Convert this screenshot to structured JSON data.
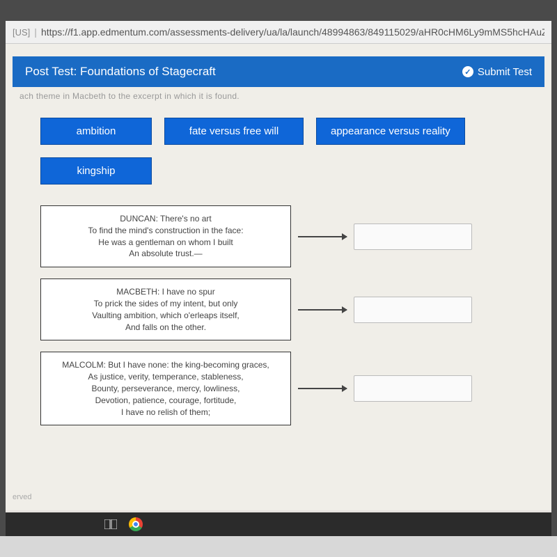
{
  "url_bar": {
    "region": "[US]",
    "url": "https://f1.app.edmentum.com/assessments-delivery/ua/la/launch/48994863/849115029/aHR0cHM6Ly9mMS5hcHAuZ"
  },
  "header": {
    "title": "Post Test: Foundations of Stagecraft",
    "submit_label": "Submit Test"
  },
  "question_fragment": "ach theme in Macbeth to the excerpt in which it is found.",
  "themes": [
    {
      "label": "ambition"
    },
    {
      "label": "fate versus free will"
    },
    {
      "label": "appearance versus reality"
    },
    {
      "label": "kingship"
    }
  ],
  "excerpts": [
    {
      "text": "DUNCAN: There's no art\nTo find the mind's construction in the face:\nHe was a gentleman on whom I built\nAn absolute trust.—"
    },
    {
      "text": "MACBETH: I have no spur\nTo prick the sides of my intent, but only\nVaulting ambition, which o'erleaps itself,\nAnd falls on the other."
    },
    {
      "text": "MALCOLM: But I have none: the king-becoming graces,\nAs justice, verity, temperance, stableness,\nBounty, perseverance, mercy, lowliness,\nDevotion, patience, courage, fortitude,\nI have no relish of them;"
    }
  ],
  "footer": "erved",
  "colors": {
    "header_bg": "#1a6bc4",
    "chip_bg": "#0f66d8",
    "border": "#333333"
  }
}
